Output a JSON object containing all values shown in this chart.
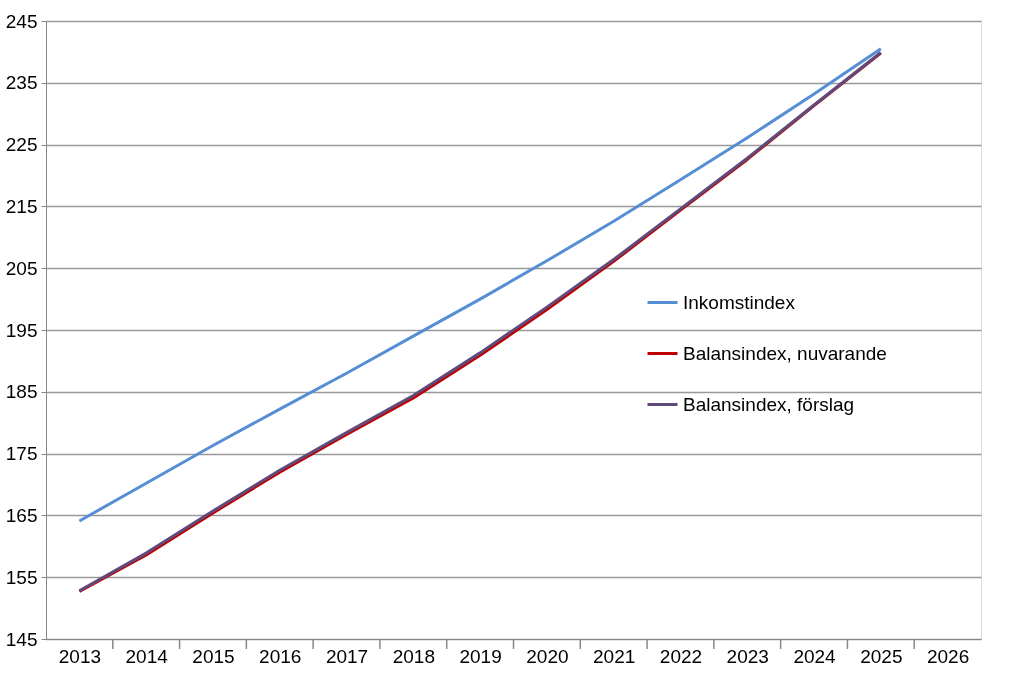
{
  "chart_data": {
    "type": "line",
    "categories": [
      "2013",
      "2014",
      "2015",
      "2016",
      "2017",
      "2018",
      "2019",
      "2020",
      "2021",
      "2022",
      "2023",
      "2024",
      "2025",
      "2026"
    ],
    "series": [
      {
        "name": "Inkomstindex",
        "color": "#558ed5",
        "values": [
          164.1,
          170.2,
          176.3,
          182.2,
          188.0,
          194.0,
          200.0,
          206.2,
          212.6,
          219.3,
          226.1,
          233.2,
          240.5,
          null
        ]
      },
      {
        "name": "Balansindex, nuvarande",
        "color": "#c00000",
        "values": [
          152.7,
          158.6,
          165.4,
          172.0,
          178.1,
          184.0,
          190.9,
          198.3,
          206.1,
          214.4,
          222.6,
          231.3,
          239.8,
          null
        ]
      },
      {
        "name": "Balansindex, förslag",
        "color": "#604a7b",
        "values": [
          152.8,
          158.9,
          165.7,
          172.3,
          178.4,
          184.4,
          191.3,
          198.7,
          206.4,
          214.6,
          222.8,
          231.4,
          239.9,
          null
        ]
      }
    ],
    "ylim": [
      145,
      245
    ],
    "yticks": [
      145,
      155,
      165,
      175,
      185,
      195,
      205,
      215,
      225,
      235,
      245
    ],
    "grid": "y",
    "legend": "right",
    "marker": "none",
    "line_style": "solid"
  }
}
